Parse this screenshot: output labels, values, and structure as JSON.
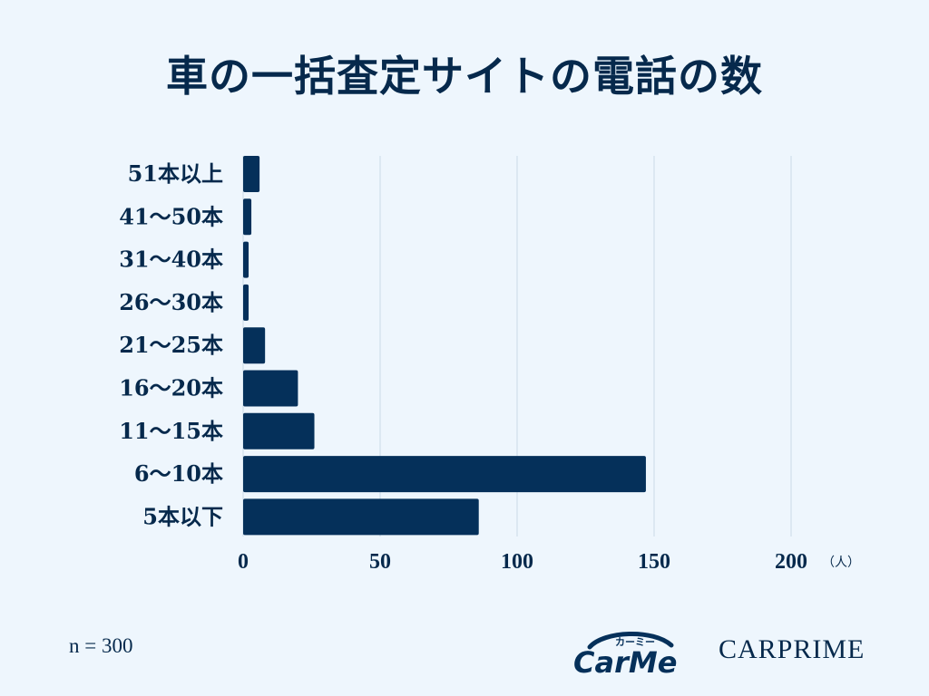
{
  "title": "車の一括査定サイトの電話の数",
  "sample_note": "n = 300",
  "logos": {
    "carme": "CarMe",
    "carme_kana": "カーミー",
    "carprime": "CARPRIME"
  },
  "colors": {
    "background": "#eef6fd",
    "bar": "#05305a",
    "text": "#06294c",
    "grid": "#c9d9e6"
  },
  "chart_data": {
    "type": "bar",
    "orientation": "horizontal",
    "title": "車の一括査定サイトの電話の数",
    "categories": [
      "51本以上",
      "41〜50本",
      "31〜40本",
      "26〜30本",
      "21〜25本",
      "16〜20本",
      "11〜15本",
      "6〜10本",
      "5本以下"
    ],
    "values": [
      6,
      3,
      2,
      2,
      8,
      20,
      26,
      147,
      86
    ],
    "x_unit": "（人）",
    "xlim": [
      0,
      200
    ],
    "xticks": [
      0,
      50,
      100,
      150,
      200
    ],
    "grid": true,
    "legend": "none"
  }
}
